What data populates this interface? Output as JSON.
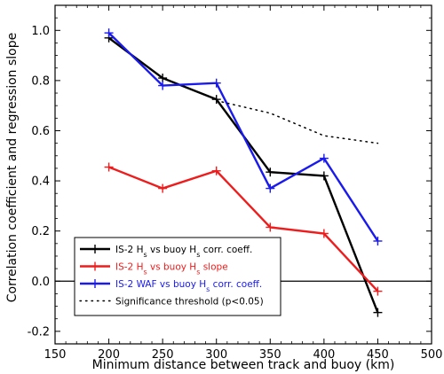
{
  "chart_data": {
    "type": "line",
    "xlabel": "Minimum distance between track and buoy (km)",
    "ylabel": "Correlation coefficient and regression slope",
    "xlim": [
      150,
      500
    ],
    "ylim": [
      -0.25,
      1.1
    ],
    "xticks": [
      150,
      200,
      250,
      300,
      350,
      400,
      450,
      500
    ],
    "yticks": [
      -0.2,
      0.0,
      0.2,
      0.4,
      0.6,
      0.8,
      1.0
    ],
    "xtick_labels": [
      "150",
      "200",
      "250",
      "300",
      "350",
      "400",
      "450",
      "500"
    ],
    "ytick_labels": [
      "-0.2",
      "0.0",
      "0.2",
      "0.4",
      "0.6",
      "0.8",
      "1.0"
    ],
    "zero_line": 0.0,
    "grid": false,
    "legend_position": "lower-left",
    "series": [
      {
        "legend_prefix": "IS-2 H",
        "legend_sub": "s",
        "legend_suffix": " vs buoy H",
        "legend_sub2": "s",
        "legend_tail": " corr. coeff.",
        "color": "#000000",
        "style": "solid",
        "marker": "plus",
        "x": [
          200,
          250,
          300,
          350,
          400,
          450
        ],
        "y": [
          0.97,
          0.81,
          0.725,
          0.435,
          0.42,
          -0.125
        ]
      },
      {
        "legend_prefix": "IS-2 H",
        "legend_sub": "s",
        "legend_suffix": " vs buoy H",
        "legend_sub2": "s",
        "legend_tail": " slope",
        "color": "#ee1c1c",
        "style": "solid",
        "marker": "plus",
        "x": [
          200,
          250,
          300,
          350,
          400,
          450
        ],
        "y": [
          0.455,
          0.37,
          0.44,
          0.215,
          0.19,
          -0.04
        ]
      },
      {
        "legend_prefix": "IS-2 WAF vs buoy H",
        "legend_sub": "s",
        "legend_suffix": " corr. coeff.",
        "legend_sub2": "",
        "legend_tail": "",
        "color": "#1a1aee",
        "style": "solid",
        "marker": "plus",
        "x": [
          200,
          250,
          300,
          350,
          400,
          450
        ],
        "y": [
          0.99,
          0.78,
          0.79,
          0.37,
          0.49,
          0.16
        ]
      },
      {
        "legend_prefix": "Significance threshold (p<0.05)",
        "legend_sub": "",
        "legend_suffix": "",
        "legend_sub2": "",
        "legend_tail": "",
        "color": "#000000",
        "style": "dotted",
        "marker": "none",
        "x": [
          200,
          250,
          300,
          350,
          400,
          450
        ],
        "y": [
          0.99,
          0.81,
          0.72,
          0.67,
          0.58,
          0.55
        ]
      }
    ]
  }
}
